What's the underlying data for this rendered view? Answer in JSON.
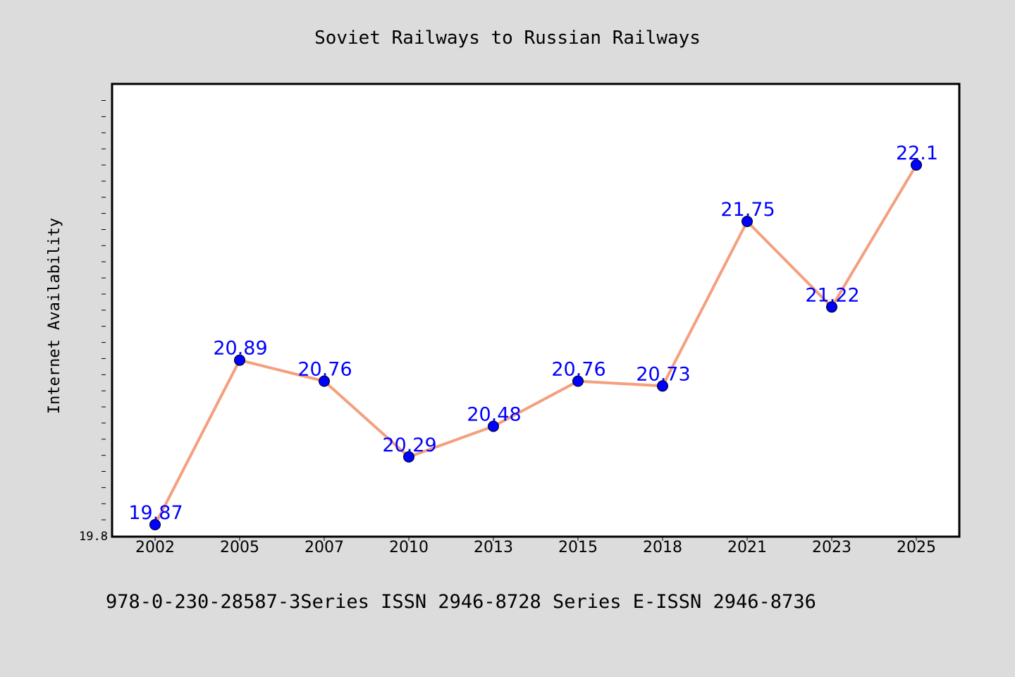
{
  "chart_data": {
    "type": "line",
    "title": "Soviet Railways to Russian Railways",
    "xlabel": "",
    "ylabel": "Internet Availability",
    "categories": [
      "2002",
      "2005",
      "2007",
      "2010",
      "2013",
      "2015",
      "2018",
      "2021",
      "2023",
      "2025"
    ],
    "series": [
      {
        "values": [
          19.87,
          20.89,
          20.76,
          20.29,
          20.48,
          20.76,
          20.73,
          21.75,
          21.22,
          22.1
        ]
      }
    ],
    "data_labels": [
      "19.87",
      "20.89",
      "20.76",
      "20.29",
      "20.48",
      "20.76",
      "20.73",
      "21.75",
      "21.22",
      "22.1"
    ],
    "ylim": [
      19.8,
      22.6
    ],
    "y_tick_labels": [
      "19.8"
    ],
    "grid": false,
    "legend": "none",
    "colors": {
      "line": "#f4a07f",
      "marker": "#0000ff",
      "label": "#0000ff",
      "plot_bg": "#ffffff",
      "page_bg": "#dcdcdc"
    }
  },
  "footer": {
    "text": "978-0-230-28587-3Series ISSN 2946-8728 Series E-ISSN 2946-8736"
  }
}
